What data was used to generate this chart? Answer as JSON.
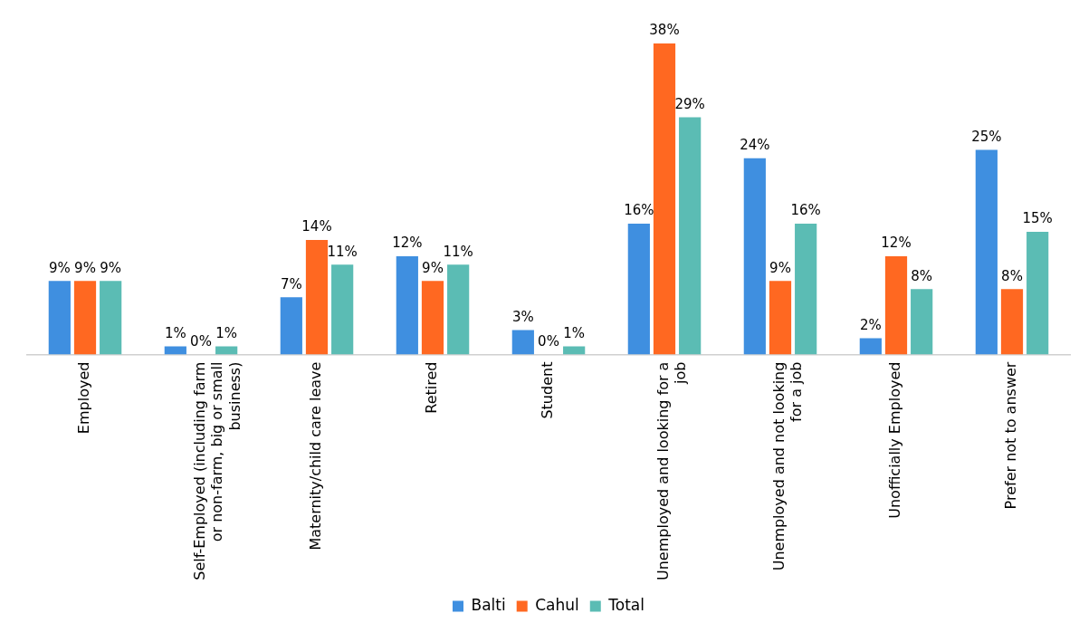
{
  "chart_data": {
    "type": "bar",
    "categories": [
      "Employed",
      "Self-Employed (including farm or non-farm, big or small business)",
      "Maternity/child care leave",
      "Retired",
      "Student",
      "Unemployed and looking for a job",
      "Unemployed and not looking for a job",
      "Unofficially Employed",
      "Prefer not to answer"
    ],
    "series": [
      {
        "name": "Balti",
        "color": "#3f8fe0",
        "values": [
          9,
          1,
          7,
          12,
          3,
          16,
          24,
          2,
          25
        ],
        "value_labels": [
          "9%",
          "1%",
          "7%",
          "12%",
          "3%",
          "16%",
          "24%",
          "2%",
          "25%"
        ]
      },
      {
        "name": "Cahul",
        "color": "#ff6821",
        "values": [
          9,
          0,
          14,
          9,
          0,
          38,
          9,
          12,
          8
        ],
        "value_labels": [
          "9%",
          "0%",
          "14%",
          "9%",
          "0%",
          "38%",
          "9%",
          "12%",
          "8%"
        ]
      },
      {
        "name": "Total",
        "color": "#5bbcb4",
        "values": [
          9,
          1,
          11,
          11,
          1,
          29,
          16,
          8,
          15
        ],
        "value_labels": [
          "9%",
          "1%",
          "11%",
          "11%",
          "1%",
          "29%",
          "16%",
          "8%",
          "15%"
        ]
      }
    ],
    "tick_labels": "x",
    "grid": false,
    "legend": "bottom"
  }
}
